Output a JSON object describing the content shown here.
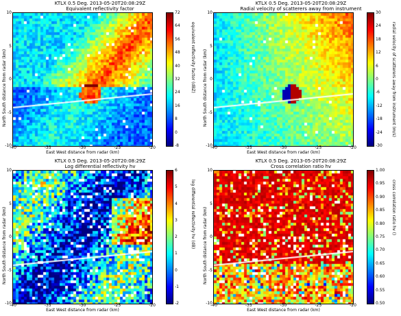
{
  "colors": {
    "jet": [
      "#00007f",
      "#0000ff",
      "#007fff",
      "#00ffff",
      "#7fff7f",
      "#ffff00",
      "#ff7f00",
      "#ff0000",
      "#7f0000"
    ],
    "radial_line": "#ffffff"
  },
  "chart_data": [
    {
      "type": "heatmap",
      "title": "KTLX 0.5 Deg. 2013-05-20T20:08:29Z",
      "subtitle": "Equivalent reflectivity factor",
      "xlabel": "East West distance from radar (km)",
      "ylabel": "North South distance from radar (km)",
      "xlim": [
        -40,
        -20
      ],
      "ylim": [
        -10,
        10
      ],
      "xticks": [
        "-40",
        "-35",
        "-30",
        "-25",
        "-20"
      ],
      "yticks": [
        "10",
        "5",
        "0",
        "-5",
        "-10"
      ],
      "colorbar": {
        "label": "equivalent reflectivity factor (dBZ)",
        "range": [
          -8,
          72
        ],
        "ticks": [
          "72",
          "64",
          "56",
          "48",
          "40",
          "32",
          "24",
          "16",
          "8",
          "0",
          "-8"
        ],
        "colormap": "jet"
      },
      "grid": false
    },
    {
      "type": "heatmap",
      "title": "KTLX 0.5 Deg. 2013-05-20T20:08:29Z",
      "subtitle": "Radial velocity of scatterers away from instrument",
      "xlabel": "East West distance from radar (km)",
      "ylabel": "North South distance from radar (km)",
      "xlim": [
        -40,
        -20
      ],
      "ylim": [
        -10,
        10
      ],
      "xticks": [
        "-40",
        "-35",
        "-30",
        "-25",
        "-20"
      ],
      "yticks": [
        "10",
        "5",
        "0",
        "-5",
        "-10"
      ],
      "colorbar": {
        "label": "radial velocity of scatterers away from instrument (m/s)",
        "range": [
          -30,
          30
        ],
        "ticks": [
          "30",
          "24",
          "18",
          "12",
          "6",
          "0",
          "-6",
          "-12",
          "-18",
          "-24",
          "-30"
        ],
        "colormap": "jet"
      },
      "grid": false
    },
    {
      "type": "heatmap",
      "title": "KTLX 0.5 Deg. 2013-05-20T20:08:29Z",
      "subtitle": "Log differential reflectivity hv",
      "xlabel": "East West distance from radar (km)",
      "ylabel": "North South distance from radar (km)",
      "xlim": [
        -40,
        -20
      ],
      "ylim": [
        -10,
        10
      ],
      "xticks": [
        "-40",
        "-35",
        "-30",
        "-25",
        "-20"
      ],
      "yticks": [
        "10",
        "5",
        "0",
        "-5",
        "-10"
      ],
      "colorbar": {
        "label": "log differential reflectivity hv (dB)",
        "range": [
          -2,
          6
        ],
        "ticks": [
          "6",
          "5",
          "4",
          "3",
          "2",
          "1",
          "0",
          "-1",
          "-2"
        ],
        "colormap": "jet"
      },
      "grid": false
    },
    {
      "type": "heatmap",
      "title": "KTLX 0.5 Deg. 2013-05-20T20:08:29Z",
      "subtitle": "Cross correlation ratio hv",
      "xlabel": "East West distance from radar (km)",
      "ylabel": "North South distance from radar (km)",
      "xlim": [
        -40,
        -20
      ],
      "ylim": [
        -10,
        10
      ],
      "xticks": [
        "-40",
        "-35",
        "-30",
        "-25",
        "-20"
      ],
      "yticks": [
        "10",
        "5",
        "0",
        "-5",
        "-10"
      ],
      "colorbar": {
        "label": "cross correlation ratio hv ()",
        "range": [
          0.5,
          1.0
        ],
        "ticks": [
          "1.00",
          "0.95",
          "0.90",
          "0.85",
          "0.80",
          "0.75",
          "0.70",
          "0.65",
          "0.60",
          "0.55",
          "0.50"
        ],
        "colormap": "jet"
      },
      "grid": false
    }
  ]
}
